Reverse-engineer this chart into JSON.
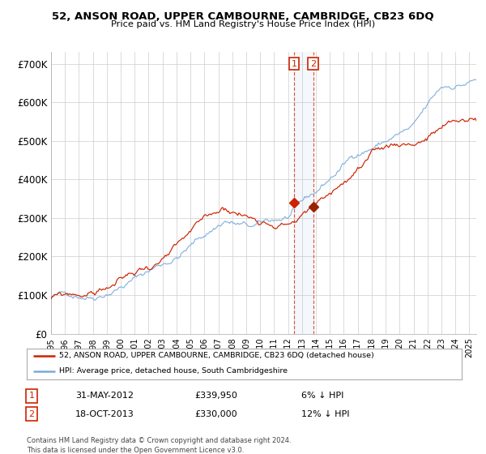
{
  "title": "52, ANSON ROAD, UPPER CAMBOURNE, CAMBRIDGE, CB23 6DQ",
  "subtitle": "Price paid vs. HM Land Registry's House Price Index (HPI)",
  "background_color": "#ffffff",
  "plot_bg_color": "#ffffff",
  "grid_color": "#cccccc",
  "hpi_line_color": "#7aaadd",
  "price_line_color": "#cc2200",
  "purchase1_date_num": 2012.42,
  "purchase1_price": 339950,
  "purchase2_date_num": 2013.8,
  "purchase2_price": 330000,
  "legend_line1": "52, ANSON ROAD, UPPER CAMBOURNE, CAMBRIDGE, CB23 6DQ (detached house)",
  "legend_line2": "HPI: Average price, detached house, South Cambridgeshire",
  "table_row1": [
    "1",
    "31-MAY-2012",
    "£339,950",
    "6% ↓ HPI"
  ],
  "table_row2": [
    "2",
    "18-OCT-2013",
    "£330,000",
    "12% ↓ HPI"
  ],
  "footnote": "Contains HM Land Registry data © Crown copyright and database right 2024.\nThis data is licensed under the Open Government Licence v3.0.",
  "ylim": [
    0,
    730000
  ],
  "xlim_start": 1995.0,
  "xlim_end": 2025.5
}
